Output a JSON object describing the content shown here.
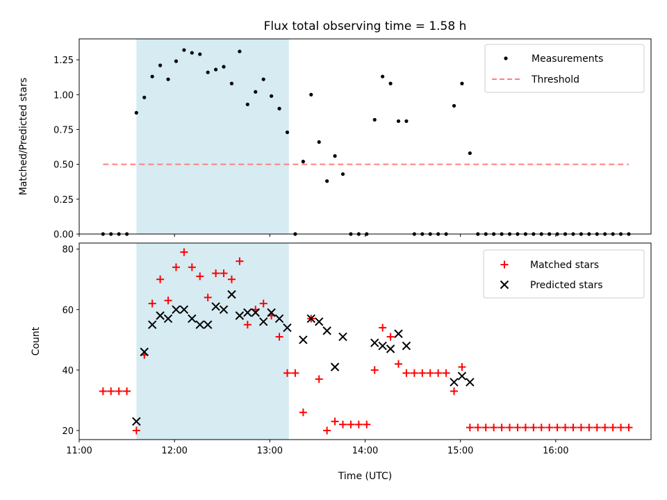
{
  "chart_data": [
    {
      "type": "scatter",
      "title": "Flux total observing time = 1.58 h",
      "xlabel": "",
      "ylabel": "Matched/Predicted stars",
      "xlim": [
        "11:00",
        "17:00"
      ],
      "ylim": [
        0,
        1.4
      ],
      "yticks": [
        "0.00",
        "0.25",
        "0.50",
        "0.75",
        "1.00",
        "1.25"
      ],
      "ytick_values": [
        0,
        0.25,
        0.5,
        0.75,
        1.0,
        1.25
      ],
      "shaded_span": [
        "11:36",
        "13:12"
      ],
      "shade_color": "#add8e6",
      "legend_position": "upper right",
      "series": [
        {
          "name": "Measurements",
          "marker": "dot",
          "color": "#000000",
          "points": [
            [
              "11:15",
              0
            ],
            [
              "11:20",
              0
            ],
            [
              "11:25",
              0
            ],
            [
              "11:30",
              0
            ],
            [
              "11:36",
              0.87
            ],
            [
              "11:41",
              0.98
            ],
            [
              "11:46",
              1.13
            ],
            [
              "11:51",
              1.21
            ],
            [
              "11:56",
              1.11
            ],
            [
              "12:01",
              1.24
            ],
            [
              "12:06",
              1.32
            ],
            [
              "12:11",
              1.3
            ],
            [
              "12:16",
              1.29
            ],
            [
              "12:21",
              1.16
            ],
            [
              "12:26",
              1.18
            ],
            [
              "12:31",
              1.2
            ],
            [
              "12:36",
              1.08
            ],
            [
              "12:41",
              1.31
            ],
            [
              "12:46",
              0.93
            ],
            [
              "12:51",
              1.02
            ],
            [
              "12:56",
              1.11
            ],
            [
              "13:01",
              0.99
            ],
            [
              "13:06",
              0.9
            ],
            [
              "13:11",
              0.73
            ],
            [
              "13:16",
              0
            ],
            [
              "13:21",
              0.52
            ],
            [
              "13:26",
              1.0
            ],
            [
              "13:31",
              0.66
            ],
            [
              "13:36",
              0.38
            ],
            [
              "13:41",
              0.56
            ],
            [
              "13:46",
              0.43
            ],
            [
              "13:51",
              0
            ],
            [
              "13:56",
              0
            ],
            [
              "14:01",
              0
            ],
            [
              "14:06",
              0.82
            ],
            [
              "14:11",
              1.13
            ],
            [
              "14:16",
              1.08
            ],
            [
              "14:21",
              0.81
            ],
            [
              "14:26",
              0.81
            ],
            [
              "14:31",
              0
            ],
            [
              "14:36",
              0
            ],
            [
              "14:41",
              0
            ],
            [
              "14:46",
              0
            ],
            [
              "14:51",
              0
            ],
            [
              "14:56",
              0.92
            ],
            [
              "15:01",
              1.08
            ],
            [
              "15:06",
              0.58
            ],
            [
              "15:11",
              0
            ],
            [
              "15:16",
              0
            ],
            [
              "15:21",
              0
            ],
            [
              "15:26",
              0
            ],
            [
              "15:31",
              0
            ],
            [
              "15:36",
              0
            ],
            [
              "15:41",
              0
            ],
            [
              "15:46",
              0
            ],
            [
              "15:51",
              0
            ],
            [
              "15:56",
              0
            ],
            [
              "16:01",
              0
            ],
            [
              "16:06",
              0
            ],
            [
              "16:11",
              0
            ],
            [
              "16:16",
              0
            ],
            [
              "16:21",
              0
            ],
            [
              "16:26",
              0
            ],
            [
              "16:31",
              0
            ],
            [
              "16:36",
              0
            ],
            [
              "16:41",
              0
            ],
            [
              "16:46",
              0
            ]
          ]
        },
        {
          "name": "Threshold",
          "marker": "dashed-line",
          "color": "#ff7f7f",
          "points": [
            [
              "11:15",
              0.5
            ],
            [
              "16:46",
              0.5
            ]
          ]
        }
      ]
    },
    {
      "type": "scatter",
      "title": "",
      "xlabel": "Time (UTC)",
      "ylabel": "Count",
      "xlim": [
        "11:00",
        "17:00"
      ],
      "ylim": [
        17,
        82
      ],
      "xticks": [
        "11:00",
        "12:00",
        "13:00",
        "14:00",
        "15:00",
        "16:00"
      ],
      "xtick_values": [
        0,
        60,
        120,
        180,
        240,
        300
      ],
      "yticks": [
        "20",
        "40",
        "60",
        "80"
      ],
      "ytick_values": [
        20,
        40,
        60,
        80
      ],
      "shaded_span": [
        "11:36",
        "13:12"
      ],
      "shade_color": "#add8e6",
      "legend_position": "upper right",
      "series": [
        {
          "name": "Matched stars",
          "marker": "plus",
          "color": "#ff0000",
          "points": [
            [
              "11:15",
              33
            ],
            [
              "11:20",
              33
            ],
            [
              "11:25",
              33
            ],
            [
              "11:30",
              33
            ],
            [
              "11:36",
              20
            ],
            [
              "11:41",
              45
            ],
            [
              "11:46",
              62
            ],
            [
              "11:51",
              70
            ],
            [
              "11:56",
              63
            ],
            [
              "12:01",
              74
            ],
            [
              "12:06",
              79
            ],
            [
              "12:11",
              74
            ],
            [
              "12:16",
              71
            ],
            [
              "12:21",
              64
            ],
            [
              "12:26",
              72
            ],
            [
              "12:31",
              72
            ],
            [
              "12:36",
              70
            ],
            [
              "12:41",
              76
            ],
            [
              "12:46",
              55
            ],
            [
              "12:51",
              60
            ],
            [
              "12:56",
              62
            ],
            [
              "13:01",
              58
            ],
            [
              "13:06",
              51
            ],
            [
              "13:11",
              39
            ],
            [
              "13:16",
              39
            ],
            [
              "13:21",
              26
            ],
            [
              "13:26",
              57
            ],
            [
              "13:31",
              37
            ],
            [
              "13:36",
              20
            ],
            [
              "13:41",
              23
            ],
            [
              "13:46",
              22
            ],
            [
              "13:51",
              22
            ],
            [
              "13:56",
              22
            ],
            [
              "14:01",
              22
            ],
            [
              "14:06",
              40
            ],
            [
              "14:11",
              54
            ],
            [
              "14:16",
              51
            ],
            [
              "14:21",
              42
            ],
            [
              "14:26",
              39
            ],
            [
              "14:31",
              39
            ],
            [
              "14:36",
              39
            ],
            [
              "14:41",
              39
            ],
            [
              "14:46",
              39
            ],
            [
              "14:51",
              39
            ],
            [
              "14:56",
              33
            ],
            [
              "15:01",
              41
            ],
            [
              "15:06",
              21
            ],
            [
              "15:11",
              21
            ],
            [
              "15:16",
              21
            ],
            [
              "15:21",
              21
            ],
            [
              "15:26",
              21
            ],
            [
              "15:31",
              21
            ],
            [
              "15:36",
              21
            ],
            [
              "15:41",
              21
            ],
            [
              "15:46",
              21
            ],
            [
              "15:51",
              21
            ],
            [
              "15:56",
              21
            ],
            [
              "16:01",
              21
            ],
            [
              "16:06",
              21
            ],
            [
              "16:11",
              21
            ],
            [
              "16:16",
              21
            ],
            [
              "16:21",
              21
            ],
            [
              "16:26",
              21
            ],
            [
              "16:31",
              21
            ],
            [
              "16:36",
              21
            ],
            [
              "16:41",
              21
            ],
            [
              "16:46",
              21
            ]
          ]
        },
        {
          "name": "Predicted stars",
          "marker": "x",
          "color": "#000000",
          "points": [
            [
              "11:36",
              23
            ],
            [
              "11:41",
              46
            ],
            [
              "11:46",
              55
            ],
            [
              "11:51",
              58
            ],
            [
              "11:56",
              57
            ],
            [
              "12:01",
              60
            ],
            [
              "12:06",
              60
            ],
            [
              "12:11",
              57
            ],
            [
              "12:16",
              55
            ],
            [
              "12:21",
              55
            ],
            [
              "12:26",
              61
            ],
            [
              "12:31",
              60
            ],
            [
              "12:36",
              65
            ],
            [
              "12:41",
              58
            ],
            [
              "12:46",
              59
            ],
            [
              "12:51",
              59
            ],
            [
              "12:56",
              56
            ],
            [
              "13:01",
              59
            ],
            [
              "13:06",
              57
            ],
            [
              "13:11",
              54
            ],
            [
              "13:21",
              50
            ],
            [
              "13:26",
              57
            ],
            [
              "13:31",
              56
            ],
            [
              "13:36",
              53
            ],
            [
              "13:41",
              41
            ],
            [
              "13:46",
              51
            ],
            [
              "14:06",
              49
            ],
            [
              "14:11",
              48
            ],
            [
              "14:16",
              47
            ],
            [
              "14:21",
              52
            ],
            [
              "14:26",
              48
            ],
            [
              "14:56",
              36
            ],
            [
              "15:01",
              38
            ],
            [
              "15:06",
              36
            ]
          ]
        }
      ]
    }
  ]
}
